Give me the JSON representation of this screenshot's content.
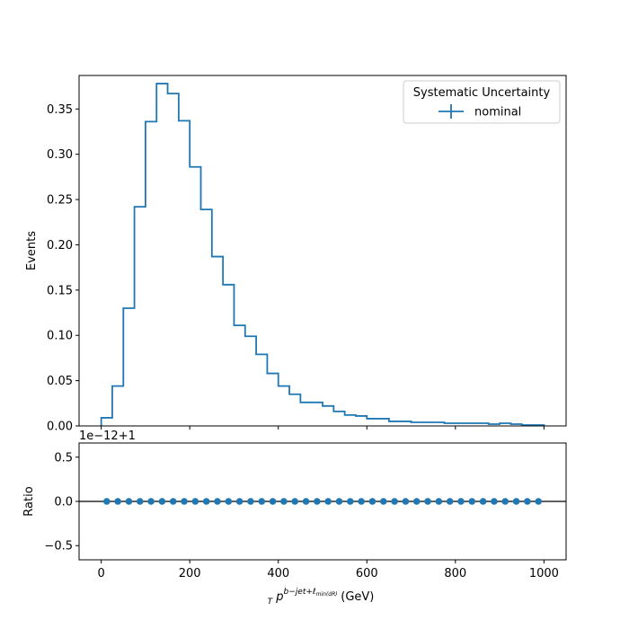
{
  "chart_data": [
    {
      "type": "histogram",
      "panel": "main",
      "ylabel": "Events",
      "xlim": [
        -50,
        1050
      ],
      "ylim": [
        0,
        0.387
      ],
      "bin_edges": [
        0,
        25,
        50,
        75,
        100,
        125,
        150,
        175,
        200,
        225,
        250,
        275,
        300,
        325,
        350,
        375,
        400,
        425,
        450,
        475,
        500,
        525,
        550,
        575,
        600,
        625,
        650,
        675,
        700,
        725,
        750,
        775,
        800,
        825,
        850,
        875,
        900,
        925,
        950,
        975,
        1000
      ],
      "series": [
        {
          "name": "nominal",
          "color": "#1f77b4",
          "values": [
            0.009,
            0.044,
            0.13,
            0.242,
            0.336,
            0.378,
            0.367,
            0.337,
            0.286,
            0.239,
            0.187,
            0.156,
            0.111,
            0.099,
            0.079,
            0.058,
            0.044,
            0.035,
            0.026,
            0.026,
            0.022,
            0.016,
            0.012,
            0.011,
            0.008,
            0.008,
            0.005,
            0.005,
            0.004,
            0.004,
            0.004,
            0.003,
            0.003,
            0.003,
            0.003,
            0.002,
            0.003,
            0.002,
            0.001,
            0.001
          ]
        }
      ],
      "yticks": [
        "0.00",
        "0.05",
        "0.10",
        "0.15",
        "0.20",
        "0.25",
        "0.30",
        "0.35"
      ],
      "ytick_values": [
        0,
        0.05,
        0.1,
        0.15,
        0.2,
        0.25,
        0.3,
        0.35
      ],
      "legend": {
        "title": "Systematic Uncertainty",
        "entries": [
          "nominal"
        ],
        "placement": "top-right"
      }
    },
    {
      "type": "scatter",
      "panel": "ratio",
      "ylabel": "Ratio",
      "offset_text": "1e−12+1",
      "xlabel_main": "p",
      "xlabel_sub": "T",
      "xlabel_sup": "b−jet+ℓ",
      "xlabel_sup_sub": "min(dR)",
      "xlabel_unit": "(GeV)",
      "xlim": [
        -50,
        1050
      ],
      "ylim": [
        -0.66,
        0.66
      ],
      "reference_line": 0,
      "xticks": [
        "0",
        "200",
        "400",
        "600",
        "800",
        "1000"
      ],
      "xtick_values": [
        0,
        200,
        400,
        600,
        800,
        1000
      ],
      "yticks": [
        "−0.5",
        "0.0",
        "0.5"
      ],
      "ytick_values": [
        -0.5,
        0,
        0.5
      ],
      "x": [
        12.5,
        37.5,
        62.5,
        87.5,
        112.5,
        137.5,
        162.5,
        187.5,
        212.5,
        237.5,
        262.5,
        287.5,
        312.5,
        337.5,
        362.5,
        387.5,
        412.5,
        437.5,
        462.5,
        487.5,
        512.5,
        537.5,
        562.5,
        587.5,
        612.5,
        637.5,
        662.5,
        687.5,
        712.5,
        737.5,
        762.5,
        787.5,
        812.5,
        837.5,
        862.5,
        887.5,
        912.5,
        937.5,
        962.5,
        987.5
      ],
      "y": [
        0,
        0,
        0,
        0,
        0,
        0,
        0,
        0,
        0,
        0,
        0,
        0,
        0,
        0,
        0,
        0,
        0,
        0,
        0,
        0,
        0,
        0,
        0,
        0,
        0,
        0,
        0,
        0,
        0,
        0,
        0,
        0,
        0,
        0,
        0,
        0,
        0,
        0,
        0,
        0
      ],
      "color": "#1f77b4"
    }
  ]
}
